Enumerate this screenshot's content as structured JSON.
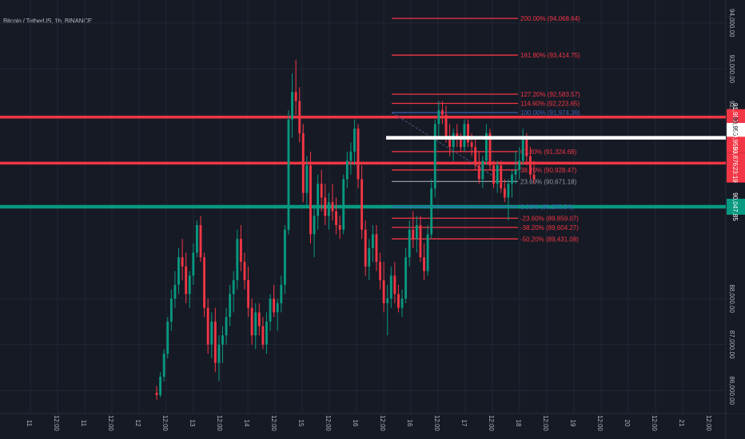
{
  "chart_data": {
    "type": "candlestick",
    "title": "Bitcoin / TetherUS, 1h, BINANCE",
    "ylim": [
      85500,
      94500
    ],
    "y_ticks": [
      {
        "v": 94000,
        "label": "94,000.00"
      },
      {
        "v": 93000,
        "label": "93,000.00"
      },
      {
        "v": 92000,
        "label": "92,000.00"
      },
      {
        "v": 88000,
        "label": "88,000.00"
      },
      {
        "v": 87000,
        "label": "87,000.00"
      },
      {
        "v": 86000,
        "label": "86,000.00"
      }
    ],
    "x_ticks": [
      "11",
      "12:00",
      "11",
      "12:00",
      "12",
      "12:00",
      "13",
      "12:00",
      "14",
      "12:00",
      "15",
      "12:00",
      "16",
      "12:00",
      "16",
      "12:00",
      "17",
      "12:00",
      "18",
      "12:00",
      "19",
      "12:00",
      "20",
      "12:00",
      "21",
      "12:00"
    ],
    "up_color": "#089981",
    "down_color": "#f23645",
    "candles": [
      [
        85950,
        86100,
        85800,
        85900
      ],
      [
        85900,
        86400,
        85850,
        86300
      ],
      [
        86300,
        86900,
        86200,
        86800
      ],
      [
        86800,
        87600,
        86700,
        87500
      ],
      [
        87500,
        88200,
        87300,
        88000
      ],
      [
        88000,
        88600,
        87800,
        88300
      ],
      [
        88300,
        89100,
        88100,
        88900
      ],
      [
        88900,
        89300,
        88400,
        88700
      ],
      [
        88700,
        89000,
        87900,
        88100
      ],
      [
        88100,
        88600,
        87800,
        88500
      ],
      [
        88500,
        89200,
        88300,
        89000
      ],
      [
        89000,
        89700,
        88900,
        89600
      ],
      [
        89600,
        89800,
        88800,
        88900
      ],
      [
        88900,
        89000,
        87600,
        87800
      ],
      [
        87800,
        88000,
        86800,
        87000
      ],
      [
        87000,
        87700,
        86700,
        87500
      ],
      [
        87500,
        87800,
        86400,
        86600
      ],
      [
        86600,
        87200,
        86200,
        87000
      ],
      [
        87000,
        87400,
        86600,
        87200
      ],
      [
        87200,
        87800,
        87000,
        87600
      ],
      [
        87600,
        88300,
        87400,
        88100
      ],
      [
        88100,
        88600,
        87700,
        88400
      ],
      [
        88400,
        89500,
        88200,
        89300
      ],
      [
        89300,
        89600,
        88600,
        88800
      ],
      [
        88800,
        89000,
        88200,
        88400
      ],
      [
        88400,
        88700,
        87600,
        87800
      ],
      [
        87800,
        88000,
        87000,
        87200
      ],
      [
        87200,
        87900,
        86900,
        87700
      ],
      [
        87700,
        87900,
        87200,
        87400
      ],
      [
        87400,
        87600,
        86900,
        87000
      ],
      [
        87000,
        87700,
        86800,
        87500
      ],
      [
        87500,
        88100,
        87300,
        88000
      ],
      [
        88000,
        88300,
        87600,
        87700
      ],
      [
        87700,
        88000,
        87300,
        87900
      ],
      [
        87900,
        88500,
        87700,
        88300
      ],
      [
        88300,
        89600,
        88100,
        89500
      ],
      [
        89500,
        92100,
        89400,
        91900
      ],
      [
        91900,
        92900,
        91500,
        92500
      ],
      [
        92500,
        93200,
        92000,
        92300
      ],
      [
        92300,
        92600,
        91400,
        91600
      ],
      [
        91600,
        91800,
        90100,
        90300
      ],
      [
        90300,
        91100,
        90000,
        90900
      ],
      [
        90900,
        91200,
        89200,
        89400
      ],
      [
        89400,
        90000,
        88900,
        89800
      ],
      [
        89800,
        90700,
        89500,
        90500
      ],
      [
        90500,
        90800,
        89900,
        90200
      ],
      [
        90200,
        90500,
        89600,
        89800
      ],
      [
        89800,
        90300,
        89500,
        90100
      ],
      [
        90100,
        90500,
        89700,
        89900
      ],
      [
        89900,
        90200,
        89400,
        89600
      ],
      [
        89600,
        89800,
        89300,
        89500
      ],
      [
        89500,
        90700,
        89400,
        90600
      ],
      [
        90600,
        91200,
        90400,
        91000
      ],
      [
        91000,
        91400,
        90700,
        91200
      ],
      [
        91200,
        91900,
        90900,
        91700
      ],
      [
        91700,
        91800,
        90400,
        90600
      ],
      [
        90600,
        90900,
        89300,
        89500
      ],
      [
        89500,
        89700,
        88500,
        88700
      ],
      [
        88700,
        89300,
        88400,
        89100
      ],
      [
        89100,
        89600,
        88800,
        89400
      ],
      [
        89400,
        89600,
        88600,
        88800
      ],
      [
        88800,
        89000,
        88200,
        88400
      ],
      [
        88400,
        88800,
        87700,
        87900
      ],
      [
        87900,
        88300,
        87200,
        88000
      ],
      [
        88000,
        88700,
        87800,
        88500
      ],
      [
        88500,
        88800,
        87900,
        88100
      ],
      [
        88100,
        88300,
        87700,
        87800
      ],
      [
        87800,
        88200,
        87600,
        88000
      ],
      [
        88000,
        89100,
        87900,
        88900
      ],
      [
        88900,
        89700,
        88700,
        89500
      ],
      [
        89500,
        89900,
        89100,
        89300
      ],
      [
        89300,
        89800,
        89000,
        89600
      ],
      [
        89600,
        89800,
        88800,
        88900
      ],
      [
        88900,
        89200,
        88400,
        88600
      ],
      [
        88600,
        89600,
        88500,
        89400
      ],
      [
        89400,
        90600,
        89300,
        90400
      ],
      [
        90400,
        91900,
        90200,
        91800
      ],
      [
        91800,
        92300,
        91500,
        92100
      ],
      [
        92100,
        92300,
        91800,
        92000
      ],
      [
        92000,
        92200,
        91400,
        91500
      ],
      [
        91500,
        91800,
        91100,
        91300
      ],
      [
        91300,
        91700,
        91000,
        91600
      ],
      [
        91600,
        91800,
        91300,
        91500
      ],
      [
        91500,
        91600,
        91200,
        91300
      ],
      [
        91300,
        91900,
        91200,
        91800
      ],
      [
        91800,
        91900,
        91300,
        91400
      ],
      [
        91400,
        91600,
        91100,
        91300
      ],
      [
        91300,
        91500,
        90800,
        90900
      ],
      [
        90900,
        91200,
        90500,
        90600
      ],
      [
        90600,
        91100,
        90400,
        91000
      ],
      [
        91000,
        91800,
        90900,
        91600
      ],
      [
        91600,
        91700,
        90800,
        90900
      ],
      [
        90900,
        91000,
        90400,
        90500
      ],
      [
        90500,
        91000,
        90300,
        90900
      ],
      [
        90900,
        91000,
        90300,
        90400
      ],
      [
        90400,
        90600,
        90100,
        90200
      ],
      [
        90200,
        90600,
        89700,
        90500
      ],
      [
        90500,
        90800,
        90200,
        90700
      ],
      [
        90700,
        91200,
        90500,
        90800
      ],
      [
        90800,
        91300,
        90600,
        91000
      ],
      [
        91000,
        91700,
        90900,
        91500
      ],
      [
        91500,
        91600,
        90900,
        91100
      ],
      [
        91100,
        91300,
        90600,
        90700
      ],
      [
        90700,
        91000,
        90500,
        90600
      ]
    ],
    "fib_levels": [
      {
        "v": 94100,
        "label": "200.00% (94,068.64)",
        "color": "#f23645"
      },
      {
        "v": 93300,
        "label": "161.80% (93,414.75)",
        "color": "#f23645"
      },
      {
        "v": 92450,
        "label": "127.20% (92,583.57)",
        "color": "#f23645"
      },
      {
        "v": 92250,
        "label": "114.60% (92,223.65)",
        "color": "#f23645"
      },
      {
        "v": 92050,
        "label": "100.00% (91,974.39)",
        "color": "#3b5fb8"
      },
      {
        "v": 91200,
        "label": "61.80% (91,324.68)",
        "color": "#f23645"
      },
      {
        "v": 90800,
        "label": "38.20% (90,928.47)",
        "color": "#f23645"
      },
      {
        "v": 90550,
        "label": "23.60% (90,671.18)",
        "color": "#9598a1"
      },
      {
        "v": 90000,
        "label": "0.00% (90,265.54)",
        "color": "#3b5fb8"
      },
      {
        "v": 89750,
        "label": "-23.60% (89,859.07)",
        "color": "#f23645"
      },
      {
        "v": 89550,
        "label": "-38.20% (89,604.27)",
        "color": "#f23645"
      },
      {
        "v": 89300,
        "label": "-50.20% (89,431.08)",
        "color": "#f23645"
      }
    ],
    "h_lines": [
      {
        "v": 91950,
        "color": "#f23645",
        "width": 3.5
      },
      {
        "v": 91500,
        "color": "#ffffff",
        "width": 4.5
      },
      {
        "v": 90950,
        "color": "#f23645",
        "width": 3.5
      },
      {
        "v": 90000,
        "color": "#089981",
        "width": 4.5
      }
    ],
    "price_tags": [
      {
        "v": 91950,
        "label": "91,956.90",
        "bg": "#f23645",
        "fg": "#ffffff"
      },
      {
        "v": 91650,
        "label": "90,955.00",
        "bg": "#ffffff",
        "fg": "#161a25"
      },
      {
        "v": 91350,
        "label": "90,955.00",
        "bg": "#f23645",
        "fg": "#ffffff"
      },
      {
        "v": 91000,
        "label": "90,876.68",
        "bg": "#f23645",
        "fg": "#ffffff"
      },
      {
        "v": 90700,
        "label": "23:19",
        "bg": "#f23645",
        "fg": "#ffffff"
      },
      {
        "v": 90000,
        "label": "90,047.85",
        "bg": "#089981",
        "fg": "#ffffff"
      }
    ]
  }
}
